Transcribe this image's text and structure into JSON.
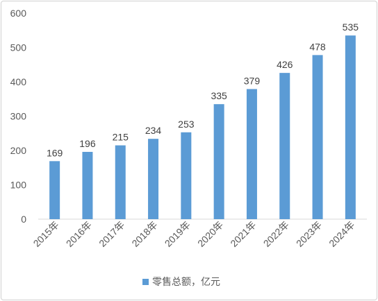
{
  "chart_data": {
    "type": "bar",
    "categories": [
      "2015年",
      "2016年",
      "2017年",
      "2018年",
      "2019年",
      "2020年",
      "2021年",
      "2022年",
      "2023年",
      "2024年"
    ],
    "series": [
      {
        "name": "零售总额，亿元",
        "values": [
          169,
          196,
          215,
          234,
          253,
          335,
          379,
          426,
          478,
          535
        ]
      }
    ],
    "ylim": [
      0,
      600
    ],
    "yticks": [
      0,
      100,
      200,
      300,
      400,
      500,
      600
    ],
    "grid": false,
    "legend": "bottom",
    "bar_color": "#5b9bd5"
  }
}
